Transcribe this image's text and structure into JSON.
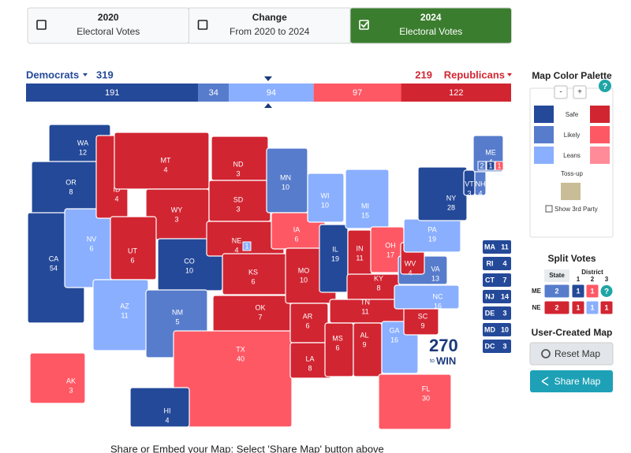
{
  "tabs": {
    "selected": 2,
    "items": [
      {
        "title": "2020",
        "subtitle": "Electoral Votes"
      },
      {
        "title": "Change",
        "subtitle": "From 2020 to 2024"
      },
      {
        "title": "2024",
        "subtitle": "Electoral Votes"
      }
    ]
  },
  "summary": {
    "dem_label": "Democrats",
    "dem_total": 319,
    "rep_total": 219,
    "rep_label": "Republicans",
    "segments": [
      {
        "value": 191,
        "color": "#244999"
      },
      {
        "value": 34,
        "color": "#577ccc"
      },
      {
        "value": 94,
        "color": "#8aafff"
      },
      {
        "value": 97,
        "color": "#ff5865"
      },
      {
        "value": 122,
        "color": "#d22532"
      }
    ]
  },
  "states": [
    {
      "abbr": "WA",
      "votes": 12,
      "color": "#244999"
    },
    {
      "abbr": "OR",
      "votes": 8,
      "color": "#244999"
    },
    {
      "abbr": "CA",
      "votes": 54,
      "color": "#244999"
    },
    {
      "abbr": "NV",
      "votes": 6,
      "color": "#8aafff"
    },
    {
      "abbr": "ID",
      "votes": 4,
      "color": "#d22532"
    },
    {
      "abbr": "MT",
      "votes": 4,
      "color": "#d22532"
    },
    {
      "abbr": "WY",
      "votes": 3,
      "color": "#d22532"
    },
    {
      "abbr": "UT",
      "votes": 6,
      "color": "#d22532"
    },
    {
      "abbr": "CO",
      "votes": 10,
      "color": "#244999"
    },
    {
      "abbr": "AZ",
      "votes": 11,
      "color": "#8aafff"
    },
    {
      "abbr": "NM",
      "votes": 5,
      "color": "#577ccc"
    },
    {
      "abbr": "ND",
      "votes": 3,
      "color": "#d22532"
    },
    {
      "abbr": "SD",
      "votes": 3,
      "color": "#d22532"
    },
    {
      "abbr": "NE",
      "votes": 4,
      "color": "#d22532"
    },
    {
      "abbr": "KS",
      "votes": 6,
      "color": "#d22532"
    },
    {
      "abbr": "OK",
      "votes": 7,
      "color": "#d22532"
    },
    {
      "abbr": "TX",
      "votes": 40,
      "color": "#ff5865"
    },
    {
      "abbr": "MN",
      "votes": 10,
      "color": "#577ccc"
    },
    {
      "abbr": "IA",
      "votes": 6,
      "color": "#ff5865"
    },
    {
      "abbr": "MO",
      "votes": 10,
      "color": "#d22532"
    },
    {
      "abbr": "AR",
      "votes": 6,
      "color": "#d22532"
    },
    {
      "abbr": "LA",
      "votes": 8,
      "color": "#d22532"
    },
    {
      "abbr": "WI",
      "votes": 10,
      "color": "#8aafff"
    },
    {
      "abbr": "IL",
      "votes": 19,
      "color": "#244999"
    },
    {
      "abbr": "MI",
      "votes": 15,
      "color": "#8aafff"
    },
    {
      "abbr": "IN",
      "votes": 11,
      "color": "#d22532"
    },
    {
      "abbr": "OH",
      "votes": 17,
      "color": "#ff5865"
    },
    {
      "abbr": "KY",
      "votes": 8,
      "color": "#d22532"
    },
    {
      "abbr": "TN",
      "votes": 11,
      "color": "#d22532"
    },
    {
      "abbr": "MS",
      "votes": 6,
      "color": "#d22532"
    },
    {
      "abbr": "AL",
      "votes": 9,
      "color": "#d22532"
    },
    {
      "abbr": "GA",
      "votes": 16,
      "color": "#8aafff"
    },
    {
      "abbr": "FL",
      "votes": 30,
      "color": "#ff5865"
    },
    {
      "abbr": "SC",
      "votes": 9,
      "color": "#d22532"
    },
    {
      "abbr": "NC",
      "votes": 16,
      "color": "#8aafff"
    },
    {
      "abbr": "VA",
      "votes": 13,
      "color": "#577ccc"
    },
    {
      "abbr": "WV",
      "votes": 4,
      "color": "#d22532"
    },
    {
      "abbr": "PA",
      "votes": 19,
      "color": "#8aafff"
    },
    {
      "abbr": "NY",
      "votes": 28,
      "color": "#244999"
    },
    {
      "abbr": "VT",
      "votes": 3,
      "color": "#244999"
    },
    {
      "abbr": "NH",
      "votes": 4,
      "color": "#577ccc"
    },
    {
      "abbr": "ME",
      "votes": 4,
      "color": "#577ccc"
    },
    {
      "abbr": "AK",
      "votes": 3,
      "color": "#ff5865"
    },
    {
      "abbr": "HI",
      "votes": 4,
      "color": "#244999"
    }
  ],
  "small_states": [
    {
      "abbr": "MA",
      "votes": 11,
      "color": "#244999"
    },
    {
      "abbr": "RI",
      "votes": 4,
      "color": "#244999"
    },
    {
      "abbr": "CT",
      "votes": 7,
      "color": "#244999"
    },
    {
      "abbr": "NJ",
      "votes": 14,
      "color": "#244999"
    },
    {
      "abbr": "DE",
      "votes": 3,
      "color": "#244999"
    },
    {
      "abbr": "MD",
      "votes": 10,
      "color": "#244999"
    },
    {
      "abbr": "DC",
      "votes": 3,
      "color": "#244999"
    }
  ],
  "logo": {
    "number": "270",
    "to": "to",
    "word": "WIN"
  },
  "palette": {
    "title": "Map Color Palette",
    "minus": "-",
    "plus": "+",
    "help": "?",
    "labels": [
      "Safe",
      "Likely",
      "Leans"
    ],
    "dem_colors": [
      "#244999",
      "#577ccc",
      "#8aafff"
    ],
    "rep_colors": [
      "#d22532",
      "#ff5865",
      "#ff8b98"
    ],
    "tossup": "Toss-up",
    "tossup_color": "#c8bd97",
    "third_party": "Show 3rd Party"
  },
  "split": {
    "title": "Split Votes",
    "state_header": "State",
    "district_header": "District",
    "districts": [
      1,
      2,
      3
    ],
    "rows": [
      {
        "state": "ME",
        "values": [
          2,
          1,
          1
        ],
        "colors": [
          "#577ccc",
          "#244999",
          "#ff5865"
        ],
        "help": "?"
      },
      {
        "state": "NE",
        "values": [
          2,
          1,
          1,
          1
        ],
        "colors": [
          "#d22532",
          "#d22532",
          "#8aafff",
          "#d22532"
        ]
      }
    ]
  },
  "user_map": {
    "title": "User-Created Map",
    "reset": "Reset Map",
    "share": "Share Map"
  },
  "footer": "Share or Embed your Map: Select 'Share Map' button above"
}
